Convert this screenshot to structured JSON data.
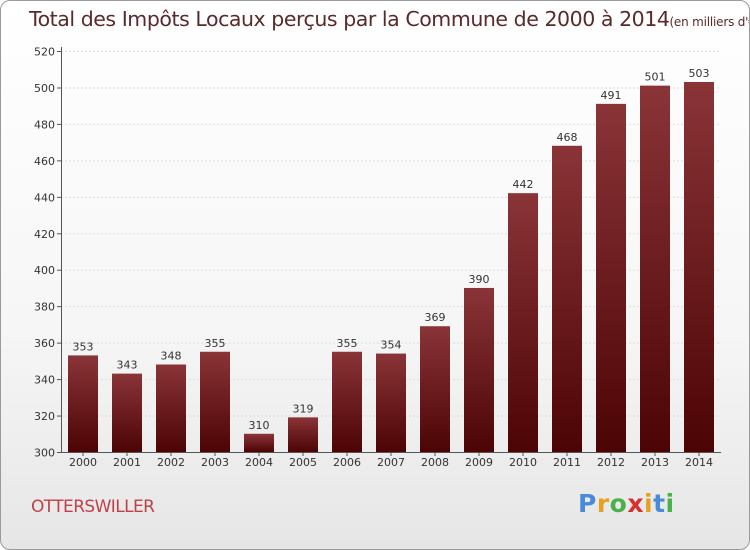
{
  "title": "Total des Impôts Locaux perçus par la Commune de 2000 à 2014",
  "unit": "(en milliers d'€)",
  "commune": "OTTERSWILLER",
  "logo": {
    "letters": [
      "P",
      "r",
      "o",
      "x",
      "i",
      "t",
      "i"
    ],
    "colors": [
      "#4a8ad8",
      "#e8a020",
      "#4ab04a",
      "#d83030",
      "#e8a020",
      "#4a8ad8",
      "#4ab04a"
    ]
  },
  "colors": {
    "bar_top": "#8a3438",
    "bar_bottom": "#4c0404",
    "axis": "#555555",
    "grid": "#dddddd",
    "text": "#333333"
  },
  "chart_data": {
    "type": "bar",
    "title": "Total des Impôts Locaux perçus par la Commune de 2000 à 2014",
    "xlabel": "",
    "ylabel": "",
    "categories": [
      "2000",
      "2001",
      "2002",
      "2003",
      "2004",
      "2005",
      "2006",
      "2007",
      "2008",
      "2009",
      "2010",
      "2011",
      "2012",
      "2013",
      "2014"
    ],
    "values": [
      353,
      343,
      348,
      355,
      310,
      319,
      355,
      354,
      369,
      390,
      442,
      468,
      491,
      501,
      503
    ],
    "value_labels": [
      "353",
      "343",
      "348",
      "355",
      "310",
      "319",
      "355",
      "354",
      "369",
      "390",
      "442",
      "468",
      "491",
      "501",
      "503"
    ],
    "ylim": [
      300,
      520
    ],
    "yticks": [
      300,
      320,
      340,
      360,
      380,
      400,
      420,
      440,
      460,
      480,
      500,
      520
    ],
    "ytick_labels": [
      "300",
      "320",
      "340",
      "360",
      "380",
      "400",
      "420",
      "440",
      "460",
      "480",
      "500",
      "520"
    ],
    "grid": true
  }
}
